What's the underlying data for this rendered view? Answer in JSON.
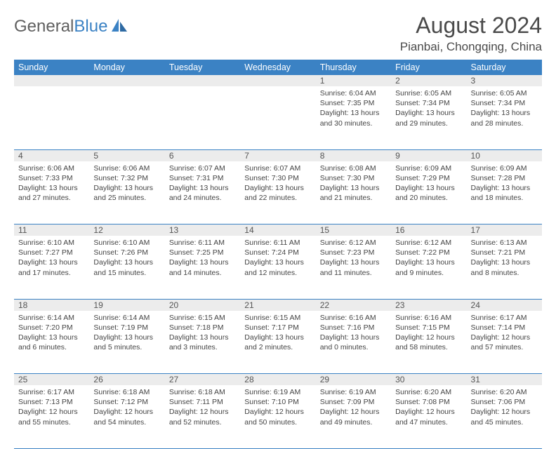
{
  "logo": {
    "text1": "General",
    "text2": "Blue"
  },
  "title": "August 2024",
  "location": "Pianbai, Chongqing, China",
  "colors": {
    "header_bg": "#3b82c4",
    "header_text": "#ffffff",
    "daynum_bg": "#ececec",
    "text": "#444444",
    "border": "#3b82c4"
  },
  "weekdays": [
    "Sunday",
    "Monday",
    "Tuesday",
    "Wednesday",
    "Thursday",
    "Friday",
    "Saturday"
  ],
  "weeks": [
    {
      "nums": [
        "",
        "",
        "",
        "",
        "1",
        "2",
        "3"
      ],
      "cells": [
        null,
        null,
        null,
        null,
        {
          "sunrise": "6:04 AM",
          "sunset": "7:35 PM",
          "daylight": "13 hours and 30 minutes."
        },
        {
          "sunrise": "6:05 AM",
          "sunset": "7:34 PM",
          "daylight": "13 hours and 29 minutes."
        },
        {
          "sunrise": "6:05 AM",
          "sunset": "7:34 PM",
          "daylight": "13 hours and 28 minutes."
        }
      ]
    },
    {
      "nums": [
        "4",
        "5",
        "6",
        "7",
        "8",
        "9",
        "10"
      ],
      "cells": [
        {
          "sunrise": "6:06 AM",
          "sunset": "7:33 PM",
          "daylight": "13 hours and 27 minutes."
        },
        {
          "sunrise": "6:06 AM",
          "sunset": "7:32 PM",
          "daylight": "13 hours and 25 minutes."
        },
        {
          "sunrise": "6:07 AM",
          "sunset": "7:31 PM",
          "daylight": "13 hours and 24 minutes."
        },
        {
          "sunrise": "6:07 AM",
          "sunset": "7:30 PM",
          "daylight": "13 hours and 22 minutes."
        },
        {
          "sunrise": "6:08 AM",
          "sunset": "7:30 PM",
          "daylight": "13 hours and 21 minutes."
        },
        {
          "sunrise": "6:09 AM",
          "sunset": "7:29 PM",
          "daylight": "13 hours and 20 minutes."
        },
        {
          "sunrise": "6:09 AM",
          "sunset": "7:28 PM",
          "daylight": "13 hours and 18 minutes."
        }
      ]
    },
    {
      "nums": [
        "11",
        "12",
        "13",
        "14",
        "15",
        "16",
        "17"
      ],
      "cells": [
        {
          "sunrise": "6:10 AM",
          "sunset": "7:27 PM",
          "daylight": "13 hours and 17 minutes."
        },
        {
          "sunrise": "6:10 AM",
          "sunset": "7:26 PM",
          "daylight": "13 hours and 15 minutes."
        },
        {
          "sunrise": "6:11 AM",
          "sunset": "7:25 PM",
          "daylight": "13 hours and 14 minutes."
        },
        {
          "sunrise": "6:11 AM",
          "sunset": "7:24 PM",
          "daylight": "13 hours and 12 minutes."
        },
        {
          "sunrise": "6:12 AM",
          "sunset": "7:23 PM",
          "daylight": "13 hours and 11 minutes."
        },
        {
          "sunrise": "6:12 AM",
          "sunset": "7:22 PM",
          "daylight": "13 hours and 9 minutes."
        },
        {
          "sunrise": "6:13 AM",
          "sunset": "7:21 PM",
          "daylight": "13 hours and 8 minutes."
        }
      ]
    },
    {
      "nums": [
        "18",
        "19",
        "20",
        "21",
        "22",
        "23",
        "24"
      ],
      "cells": [
        {
          "sunrise": "6:14 AM",
          "sunset": "7:20 PM",
          "daylight": "13 hours and 6 minutes."
        },
        {
          "sunrise": "6:14 AM",
          "sunset": "7:19 PM",
          "daylight": "13 hours and 5 minutes."
        },
        {
          "sunrise": "6:15 AM",
          "sunset": "7:18 PM",
          "daylight": "13 hours and 3 minutes."
        },
        {
          "sunrise": "6:15 AM",
          "sunset": "7:17 PM",
          "daylight": "13 hours and 2 minutes."
        },
        {
          "sunrise": "6:16 AM",
          "sunset": "7:16 PM",
          "daylight": "13 hours and 0 minutes."
        },
        {
          "sunrise": "6:16 AM",
          "sunset": "7:15 PM",
          "daylight": "12 hours and 58 minutes."
        },
        {
          "sunrise": "6:17 AM",
          "sunset": "7:14 PM",
          "daylight": "12 hours and 57 minutes."
        }
      ]
    },
    {
      "nums": [
        "25",
        "26",
        "27",
        "28",
        "29",
        "30",
        "31"
      ],
      "cells": [
        {
          "sunrise": "6:17 AM",
          "sunset": "7:13 PM",
          "daylight": "12 hours and 55 minutes."
        },
        {
          "sunrise": "6:18 AM",
          "sunset": "7:12 PM",
          "daylight": "12 hours and 54 minutes."
        },
        {
          "sunrise": "6:18 AM",
          "sunset": "7:11 PM",
          "daylight": "12 hours and 52 minutes."
        },
        {
          "sunrise": "6:19 AM",
          "sunset": "7:10 PM",
          "daylight": "12 hours and 50 minutes."
        },
        {
          "sunrise": "6:19 AM",
          "sunset": "7:09 PM",
          "daylight": "12 hours and 49 minutes."
        },
        {
          "sunrise": "6:20 AM",
          "sunset": "7:08 PM",
          "daylight": "12 hours and 47 minutes."
        },
        {
          "sunrise": "6:20 AM",
          "sunset": "7:06 PM",
          "daylight": "12 hours and 45 minutes."
        }
      ]
    }
  ]
}
